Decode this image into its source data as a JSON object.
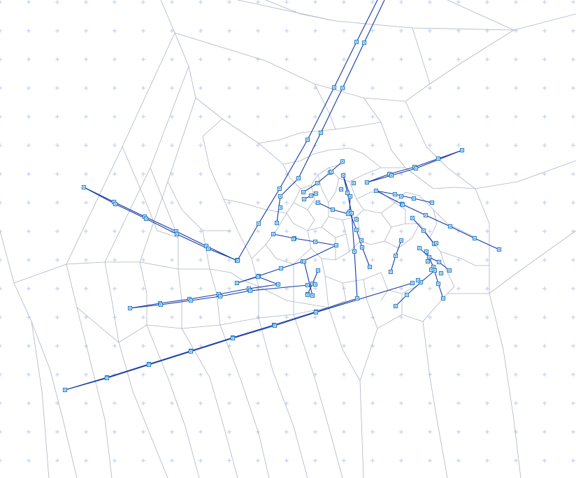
{
  "canvas": {
    "background_color": "#ffffff",
    "grid_color": "#b8cbe8",
    "cell_edge_color": "#aeb4c4",
    "link_color": "#1238a8",
    "node_color": "#2e86c8"
  },
  "graph": {
    "description_kind": "voronoi-mesh-with-routed-links",
    "node_marker": "small-square",
    "show_grid": true
  }
}
